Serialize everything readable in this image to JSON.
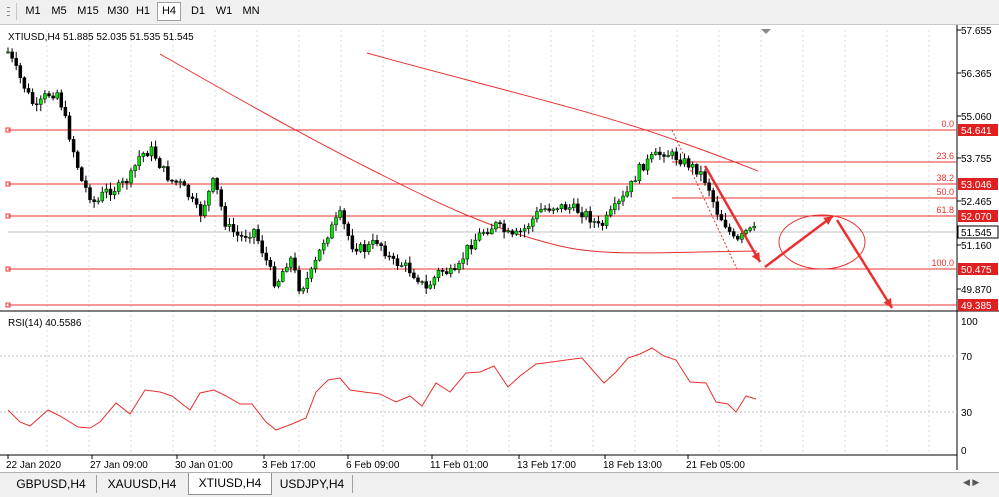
{
  "toolbar": {
    "timeframes": [
      {
        "label": "M1",
        "active": false
      },
      {
        "label": "M5",
        "active": false
      },
      {
        "label": "M15",
        "active": false
      },
      {
        "label": "M30",
        "active": false
      },
      {
        "label": "H1",
        "active": false
      },
      {
        "label": "H4",
        "active": true
      },
      {
        "label": "D1",
        "active": false
      },
      {
        "label": "W1",
        "active": false
      },
      {
        "label": "MN",
        "active": false
      }
    ]
  },
  "chart": {
    "info": "XTIUSD,H4  51.885 52.035 51.535 51.545",
    "price_axis": [
      "57.655",
      "56.365",
      "55.060",
      "53.755",
      "52.465",
      "51.160",
      "49.870"
    ],
    "current_price": "51.545",
    "fib_levels": [
      {
        "pct": "0.0",
        "price": "54.641"
      },
      {
        "pct": "23.6",
        "price": ""
      },
      {
        "pct": "38.2",
        "price": "53.046"
      },
      {
        "pct": "50.0",
        "price": ""
      },
      {
        "pct": "61.8",
        "price": "52.070"
      },
      {
        "pct": "100.0",
        "price": "50.475"
      }
    ],
    "extra_level": "49.385",
    "rsi_label": "RSI(14) 40.5586",
    "rsi_axis": [
      "100",
      "70",
      "30",
      "0"
    ],
    "time_axis": [
      "22 Jan 2020",
      "27 Jan 09:00",
      "30 Jan 01:00",
      "3 Feb 17:00",
      "6 Feb 09:00",
      "11 Feb 01:00",
      "13 Feb 17:00",
      "18 Feb 13:00",
      "21 Feb 05:00"
    ],
    "colors": {
      "bull": "#00e600",
      "bear": "#000000",
      "line": "#e83030",
      "arrow": "#e83030",
      "label_bg": "#e02020"
    }
  },
  "tabs": {
    "items": [
      {
        "label": "GBPUSD,H4",
        "active": false
      },
      {
        "label": "XAUUSD,H4",
        "active": false
      },
      {
        "label": "XTIUSD,H4",
        "active": true
      },
      {
        "label": "USDJPY,H4",
        "active": false
      }
    ]
  }
}
